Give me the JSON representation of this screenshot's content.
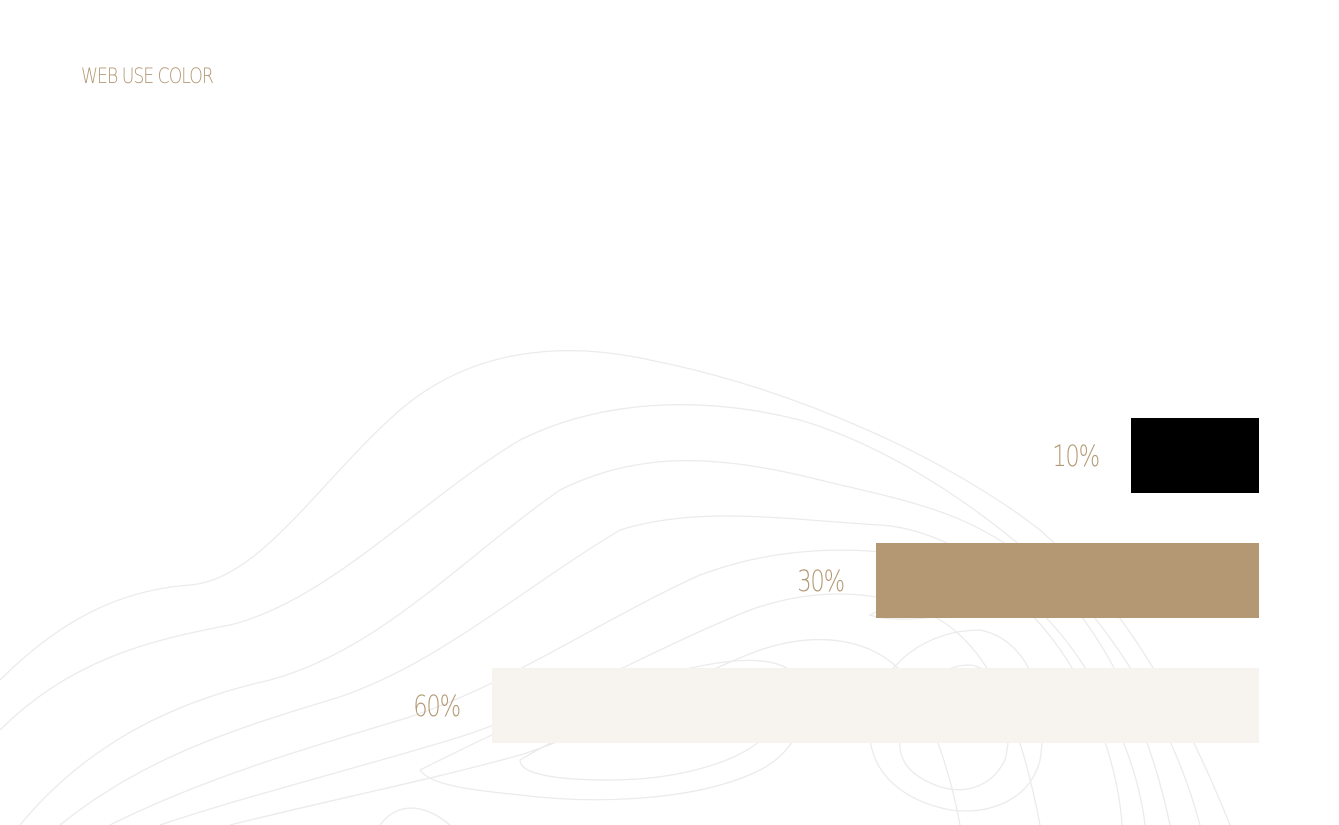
{
  "title": "WEB USE COLOR",
  "accent_color": "#b39873",
  "chart_data": {
    "type": "bar",
    "orientation": "horizontal",
    "categories": [
      "10%",
      "30%",
      "60%"
    ],
    "values": [
      10,
      30,
      60
    ],
    "colors": [
      "#000000",
      "#b39873",
      "#f7f4ef"
    ],
    "title": "WEB USE COLOR",
    "xlabel": "",
    "ylabel": "",
    "grid": false,
    "data_labels": [
      "10%",
      "30%",
      "60%"
    ]
  }
}
